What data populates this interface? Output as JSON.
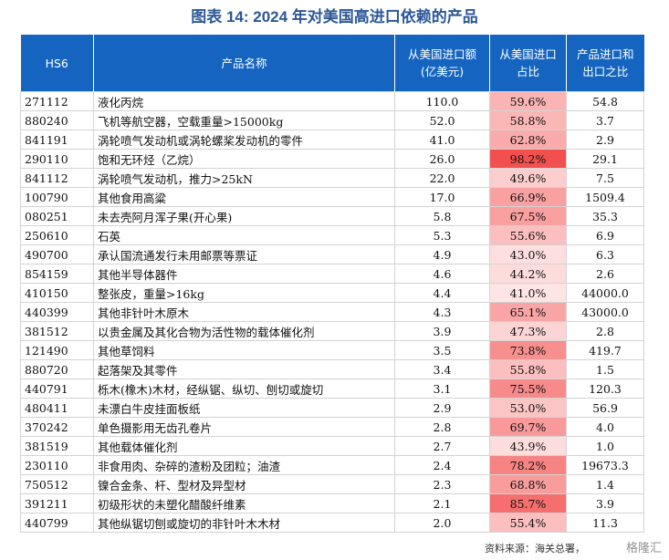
{
  "title": "图表 14: 2024 年对美国高进口依赖的产品",
  "columns": [
    "HS6",
    "产品名称",
    "从美国进口额\n(亿美元)",
    "从美国进口\n占比",
    "产品进口和\n出口之比"
  ],
  "rows": [
    {
      "code": "271112",
      "name": "液化丙烷",
      "import_value": "110.0",
      "share": "59.6%",
      "share_value": 59.6,
      "ratio": "54.8"
    },
    {
      "code": "880240",
      "name": "飞机等航空器，空载重量>15000kg",
      "import_value": "52.0",
      "share": "58.8%",
      "share_value": 58.8,
      "ratio": "3.7"
    },
    {
      "code": "841191",
      "name": "涡轮喷气发动机或涡轮螺桨发动机的零件",
      "import_value": "41.0",
      "share": "62.8%",
      "share_value": 62.8,
      "ratio": "2.9"
    },
    {
      "code": "290110",
      "name": "饱和无环烃（乙烷）",
      "import_value": "26.0",
      "share": "98.2%",
      "share_value": 98.2,
      "ratio": "29.1"
    },
    {
      "code": "841112",
      "name": "涡轮喷气发动机，推力>25kN",
      "import_value": "22.0",
      "share": "49.6%",
      "share_value": 49.6,
      "ratio": "7.5"
    },
    {
      "code": "100790",
      "name": "其他食用高粱",
      "import_value": "17.0",
      "share": "66.9%",
      "share_value": 66.9,
      "ratio": "1509.4"
    },
    {
      "code": "080251",
      "name": "未去壳阿月浑子果(开心果)",
      "import_value": "5.8",
      "share": "67.5%",
      "share_value": 67.5,
      "ratio": "35.3"
    },
    {
      "code": "250610",
      "name": "石英",
      "import_value": "5.3",
      "share": "55.6%",
      "share_value": 55.6,
      "ratio": "6.9"
    },
    {
      "code": "490700",
      "name": "承认国流通发行未用邮票等票证",
      "import_value": "4.9",
      "share": "43.0%",
      "share_value": 43.0,
      "ratio": "6.3"
    },
    {
      "code": "854159",
      "name": "其他半导体器件",
      "import_value": "4.6",
      "share": "44.2%",
      "share_value": 44.2,
      "ratio": "2.6"
    },
    {
      "code": "410150",
      "name": "整张皮，重量>16kg",
      "import_value": "4.4",
      "share": "41.0%",
      "share_value": 41.0,
      "ratio": "44000.0"
    },
    {
      "code": "440399",
      "name": "其他非针叶木原木",
      "import_value": "4.3",
      "share": "65.1%",
      "share_value": 65.1,
      "ratio": "43000.0"
    },
    {
      "code": "381512",
      "name": "以贵金属及其化合物为活性物的载体催化剂",
      "import_value": "3.9",
      "share": "47.3%",
      "share_value": 47.3,
      "ratio": "2.8"
    },
    {
      "code": "121490",
      "name": "其他草饲料",
      "import_value": "3.5",
      "share": "73.8%",
      "share_value": 73.8,
      "ratio": "419.7"
    },
    {
      "code": "880720",
      "name": "起落架及其零件",
      "import_value": "3.4",
      "share": "55.8%",
      "share_value": 55.8,
      "ratio": "1.5"
    },
    {
      "code": "440791",
      "name": "栎木(橡木)木材，经纵锯、纵切、刨切或旋切",
      "import_value": "3.1",
      "share": "75.5%",
      "share_value": 75.5,
      "ratio": "120.3"
    },
    {
      "code": "480411",
      "name": "未漂白牛皮挂面板纸",
      "import_value": "2.9",
      "share": "53.0%",
      "share_value": 53.0,
      "ratio": "56.9"
    },
    {
      "code": "370242",
      "name": "单色摄影用无齿孔卷片",
      "import_value": "2.8",
      "share": "69.7%",
      "share_value": 69.7,
      "ratio": "4.0"
    },
    {
      "code": "381519",
      "name": "其他载体催化剂",
      "import_value": "2.7",
      "share": "43.9%",
      "share_value": 43.9,
      "ratio": "1.0"
    },
    {
      "code": "230110",
      "name": "非食用肉、杂碎的渣粉及团粒；油渣",
      "import_value": "2.4",
      "share": "78.2%",
      "share_value": 78.2,
      "ratio": "19673.3"
    },
    {
      "code": "750512",
      "name": "镍合金条、杆、型材及异型材",
      "import_value": "2.3",
      "share": "68.8%",
      "share_value": 68.8,
      "ratio": "1.4"
    },
    {
      "code": "391211",
      "name": "初级形状的未塑化醋酸纤维素",
      "import_value": "2.1",
      "share": "85.7%",
      "share_value": 85.7,
      "ratio": "3.9"
    },
    {
      "code": "440799",
      "name": "其他纵锯切刨或旋切的非针叶木木材",
      "import_value": "2.0",
      "share": "55.4%",
      "share_value": 55.4,
      "ratio": "11.3"
    }
  ],
  "heat_colors": {
    "low": "#ffe7e7",
    "high": "#f24a4a"
  },
  "header_color": "#1565c0",
  "source": "资料来源：海关总署，",
  "watermark": "格隆汇"
}
